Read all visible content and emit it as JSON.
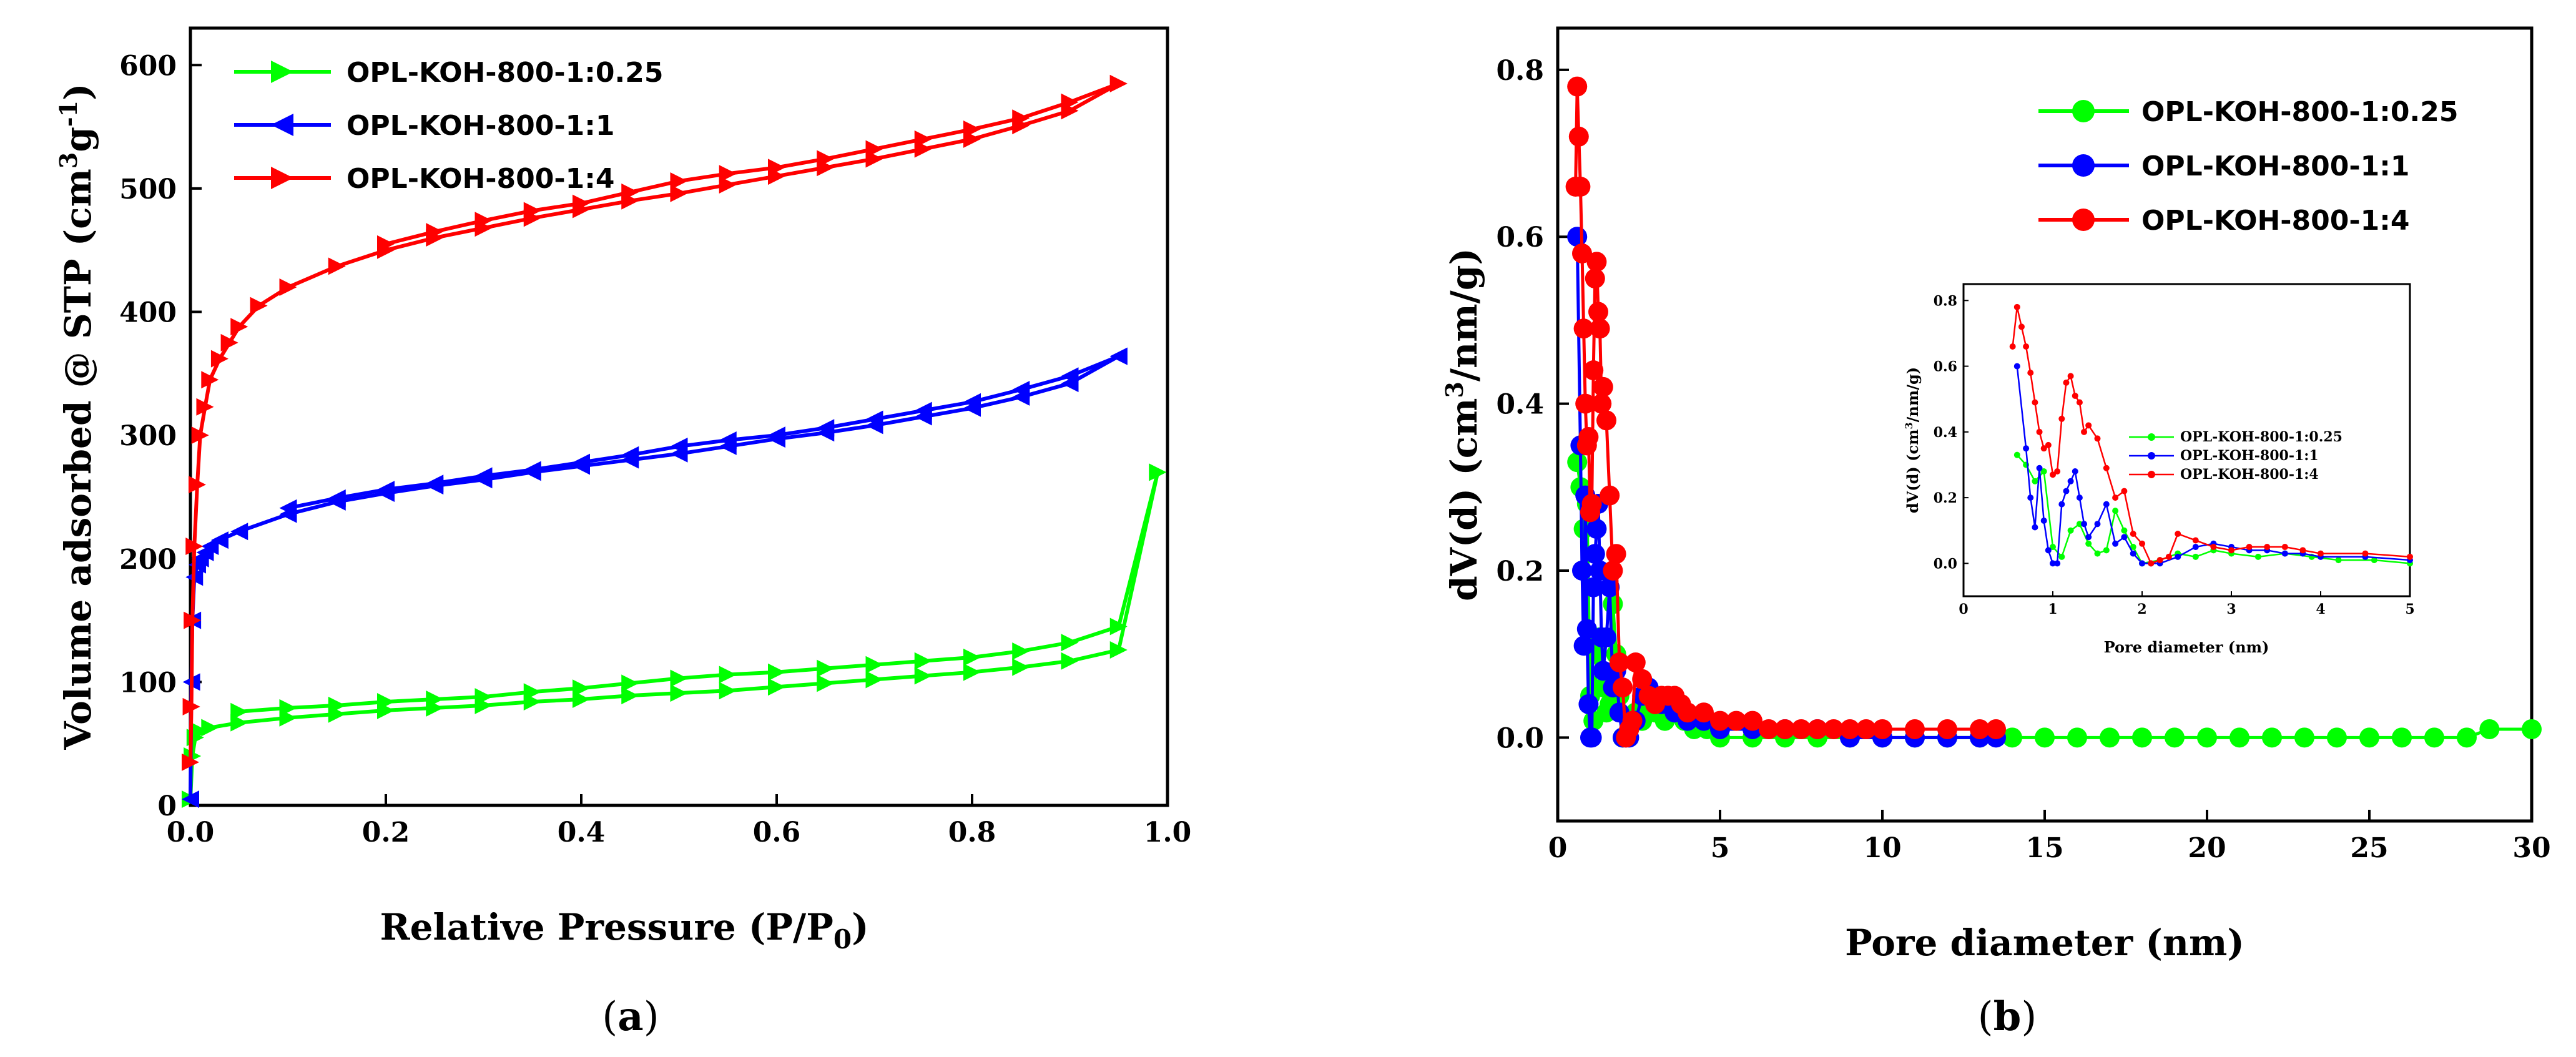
{
  "chart_data": [
    {
      "type": "line",
      "panel_label_parts": [
        "(",
        "a",
        ")"
      ],
      "xlabel": "Relative Pressure (P/P",
      "xlabel_sub": "0",
      "xlabel_tail": ")",
      "ylabel": "Volume adsorbed @ STP (cm",
      "ylabel_sup1": "3",
      "ylabel_mid": "g",
      "ylabel_sup2": "-1",
      "ylabel_tail": ")",
      "xlim": [
        0,
        1.0
      ],
      "ylim": [
        0,
        630
      ],
      "xticks": [
        0.0,
        0.2,
        0.4,
        0.6,
        0.8,
        1.0
      ],
      "xtick_labels": [
        "0.0",
        "0.2",
        "0.4",
        "0.6",
        "0.8",
        "1.0"
      ],
      "yticks": [
        0,
        100,
        200,
        300,
        400,
        500,
        600
      ],
      "ytick_labels": [
        "0",
        "100",
        "200",
        "300",
        "400",
        "500",
        "600"
      ],
      "legend_position": "top-left",
      "series": [
        {
          "name": "OPL-KOH-800-1:0.25",
          "color": "#00ff00",
          "marker": "triangle-right",
          "adsorption": {
            "x": [
              0.0,
              0.002,
              0.005,
              0.01,
              0.02,
              0.05,
              0.1,
              0.15,
              0.2,
              0.25,
              0.3,
              0.35,
              0.4,
              0.45,
              0.5,
              0.55,
              0.6,
              0.65,
              0.7,
              0.75,
              0.8,
              0.85,
              0.9,
              0.95,
              0.99
            ],
            "y": [
              5,
              40,
              55,
              60,
              63,
              67,
              71,
              74,
              77,
              79,
              81,
              84,
              86,
              89,
              91,
              93,
              96,
              99,
              102,
              105,
              108,
              112,
              117,
              126,
              270
            ]
          },
          "desorption": {
            "x": [
              0.99,
              0.95,
              0.9,
              0.85,
              0.8,
              0.75,
              0.7,
              0.65,
              0.6,
              0.55,
              0.5,
              0.45,
              0.4,
              0.35,
              0.3,
              0.25,
              0.2,
              0.15,
              0.1,
              0.05
            ],
            "y": [
              270,
              145,
              132,
              125,
              120,
              117,
              114,
              111,
              108,
              106,
              103,
              99,
              95,
              92,
              88,
              86,
              84,
              81,
              79,
              76
            ]
          }
        },
        {
          "name": "OPL-KOH-800-1:1",
          "color": "#0000ff",
          "marker": "triangle-left",
          "adsorption": {
            "x": [
              0.0,
              0.001,
              0.002,
              0.004,
              0.007,
              0.01,
              0.015,
              0.02,
              0.03,
              0.05,
              0.1,
              0.15,
              0.2,
              0.25,
              0.3,
              0.35,
              0.4,
              0.45,
              0.5,
              0.55,
              0.6,
              0.65,
              0.7,
              0.75,
              0.8,
              0.85,
              0.9,
              0.95
            ],
            "y": [
              5,
              100,
              150,
              185,
              195,
              200,
              205,
              210,
              215,
              222,
              236,
              246,
              253,
              259,
              264,
              270,
              275,
              280,
              285,
              291,
              297,
              302,
              308,
              315,
              322,
              331,
              342,
              364
            ]
          },
          "desorption": {
            "x": [
              0.95,
              0.9,
              0.85,
              0.8,
              0.75,
              0.7,
              0.65,
              0.6,
              0.55,
              0.5,
              0.45,
              0.4,
              0.35,
              0.3,
              0.25,
              0.2,
              0.15,
              0.1
            ],
            "y": [
              364,
              348,
              337,
              327,
              320,
              313,
              306,
              300,
              296,
              291,
              284,
              278,
              272,
              267,
              261,
              256,
              249,
              241
            ]
          }
        },
        {
          "name": "OPL-KOH-800-1:4",
          "color": "#ff0000",
          "marker": "triangle-right",
          "adsorption": {
            "x": [
              0.0,
              0.001,
              0.002,
              0.004,
              0.007,
              0.01,
              0.015,
              0.02,
              0.03,
              0.04,
              0.05,
              0.07,
              0.1,
              0.15,
              0.2,
              0.25,
              0.3,
              0.35,
              0.4,
              0.45,
              0.5,
              0.55,
              0.6,
              0.65,
              0.7,
              0.75,
              0.8,
              0.85,
              0.9,
              0.95
            ],
            "y": [
              35,
              80,
              150,
              210,
              260,
              300,
              323,
              345,
              362,
              375,
              388,
              405,
              420,
              437,
              450,
              460,
              468,
              476,
              483,
              490,
              496,
              503,
              510,
              517,
              524,
              532,
              540,
              551,
              563,
              585
            ]
          },
          "desorption": {
            "x": [
              0.95,
              0.9,
              0.85,
              0.8,
              0.75,
              0.7,
              0.65,
              0.6,
              0.55,
              0.5,
              0.45,
              0.4,
              0.35,
              0.3,
              0.25,
              0.2
            ],
            "y": [
              585,
              570,
              557,
              548,
              540,
              532,
              524,
              517,
              512,
              506,
              497,
              488,
              482,
              474,
              465,
              455
            ]
          }
        }
      ]
    },
    {
      "type": "line",
      "panel_label_parts": [
        "(",
        "b",
        ")"
      ],
      "xlabel": "Pore diameter (nm)",
      "ylabel": "dV(d) (cm",
      "ylabel_sup1": "3",
      "ylabel_tail": "/nm/g)",
      "xlim": [
        0,
        30
      ],
      "ylim": [
        -0.1,
        0.85
      ],
      "xticks": [
        0,
        5,
        10,
        15,
        20,
        25,
        30
      ],
      "xtick_labels": [
        "0",
        "5",
        "10",
        "15",
        "20",
        "25",
        "30"
      ],
      "yticks": [
        0.0,
        0.2,
        0.4,
        0.6,
        0.8
      ],
      "ytick_labels": [
        "0.0",
        "0.2",
        "0.4",
        "0.6",
        "0.8"
      ],
      "legend_position": "top-right",
      "series": [
        {
          "name": "OPL-KOH-800-1:0.25",
          "color": "#00ff00",
          "marker": "circle",
          "x": [
            0.6,
            0.7,
            0.8,
            0.9,
            1.0,
            1.1,
            1.2,
            1.3,
            1.4,
            1.5,
            1.6,
            1.7,
            1.8,
            1.9,
            2.0,
            2.2,
            2.4,
            2.6,
            2.8,
            3.0,
            3.3,
            3.6,
            3.9,
            4.2,
            4.6,
            5.0,
            6,
            7,
            8,
            9,
            10,
            11,
            12,
            13,
            14,
            15,
            16,
            17,
            18,
            19,
            20,
            21,
            22,
            23,
            24,
            25,
            26,
            27,
            28,
            28.7,
            30
          ],
          "y": [
            0.33,
            0.3,
            0.25,
            0.28,
            0.05,
            0.02,
            0.1,
            0.12,
            0.06,
            0.03,
            0.04,
            0.16,
            0.1,
            0.05,
            0.0,
            0.01,
            0.03,
            0.02,
            0.04,
            0.03,
            0.02,
            0.03,
            0.02,
            0.01,
            0.01,
            0.0,
            0.0,
            0.0,
            0.0,
            0.0,
            0.0,
            0.0,
            0.0,
            0.0,
            0.0,
            0.0,
            0.0,
            0.0,
            0.0,
            0.0,
            0.0,
            0.0,
            0.0,
            0.0,
            0.0,
            0.0,
            0.0,
            0.0,
            0.0,
            0.01,
            0.01
          ]
        },
        {
          "name": "OPL-KOH-800-1:1",
          "color": "#0000ff",
          "marker": "circle",
          "x": [
            0.6,
            0.7,
            0.75,
            0.8,
            0.85,
            0.9,
            0.95,
            1.0,
            1.05,
            1.1,
            1.15,
            1.2,
            1.25,
            1.3,
            1.35,
            1.4,
            1.5,
            1.6,
            1.7,
            1.8,
            1.9,
            2.0,
            2.1,
            2.2,
            2.4,
            2.6,
            2.8,
            3.0,
            3.2,
            3.4,
            3.6,
            3.8,
            4.0,
            4.5,
            5,
            6,
            7,
            8,
            9,
            10,
            11,
            12,
            13,
            13.5
          ],
          "y": [
            0.6,
            0.35,
            0.2,
            0.11,
            0.29,
            0.13,
            0.04,
            0.0,
            0.0,
            0.18,
            0.22,
            0.25,
            0.28,
            0.2,
            0.12,
            0.08,
            0.12,
            0.18,
            0.06,
            0.08,
            0.03,
            0.0,
            0.0,
            0.0,
            0.02,
            0.05,
            0.06,
            0.05,
            0.04,
            0.04,
            0.03,
            0.03,
            0.02,
            0.02,
            0.01,
            0.01,
            0.01,
            0.01,
            0.0,
            0.0,
            0.0,
            0.0,
            0.0,
            0.0
          ]
        },
        {
          "name": "OPL-KOH-800-1:4",
          "color": "#ff0000",
          "marker": "circle",
          "x": [
            0.55,
            0.6,
            0.65,
            0.7,
            0.75,
            0.8,
            0.85,
            0.9,
            0.95,
            1.0,
            1.05,
            1.1,
            1.15,
            1.2,
            1.25,
            1.3,
            1.35,
            1.4,
            1.5,
            1.6,
            1.7,
            1.8,
            1.9,
            2.0,
            2.1,
            2.2,
            2.3,
            2.4,
            2.6,
            2.8,
            3.0,
            3.2,
            3.4,
            3.6,
            3.8,
            4.0,
            4.5,
            5,
            5.5,
            6,
            6.5,
            7,
            7.5,
            8,
            8.5,
            9,
            9.5,
            10,
            11,
            12,
            13,
            13.5
          ],
          "y": [
            0.66,
            0.78,
            0.72,
            0.66,
            0.58,
            0.49,
            0.4,
            0.35,
            0.36,
            0.27,
            0.28,
            0.44,
            0.55,
            0.57,
            0.51,
            0.49,
            0.4,
            0.42,
            0.38,
            0.29,
            0.2,
            0.22,
            0.09,
            0.06,
            0.0,
            0.01,
            0.02,
            0.09,
            0.07,
            0.05,
            0.04,
            0.05,
            0.05,
            0.05,
            0.04,
            0.03,
            0.03,
            0.02,
            0.02,
            0.02,
            0.01,
            0.01,
            0.01,
            0.01,
            0.01,
            0.01,
            0.01,
            0.01,
            0.01,
            0.01,
            0.01,
            0.01
          ]
        }
      ],
      "inset": {
        "xlabel": "Pore diameter (nm)",
        "ylabel": "dV(d) (cm",
        "ylabel_sup1": "3",
        "ylabel_tail": "/nm/g)",
        "xlim": [
          0,
          5
        ],
        "ylim": [
          -0.1,
          0.85
        ],
        "xticks": [
          0,
          1,
          2,
          3,
          4,
          5
        ],
        "xtick_labels": [
          "0",
          "1",
          "2",
          "3",
          "4",
          "5"
        ],
        "yticks": [
          0.0,
          0.2,
          0.4,
          0.6,
          0.8
        ],
        "ytick_labels": [
          "0.0",
          "0.2",
          "0.4",
          "0.6",
          "0.8"
        ],
        "legend_position": "center-left"
      }
    }
  ]
}
